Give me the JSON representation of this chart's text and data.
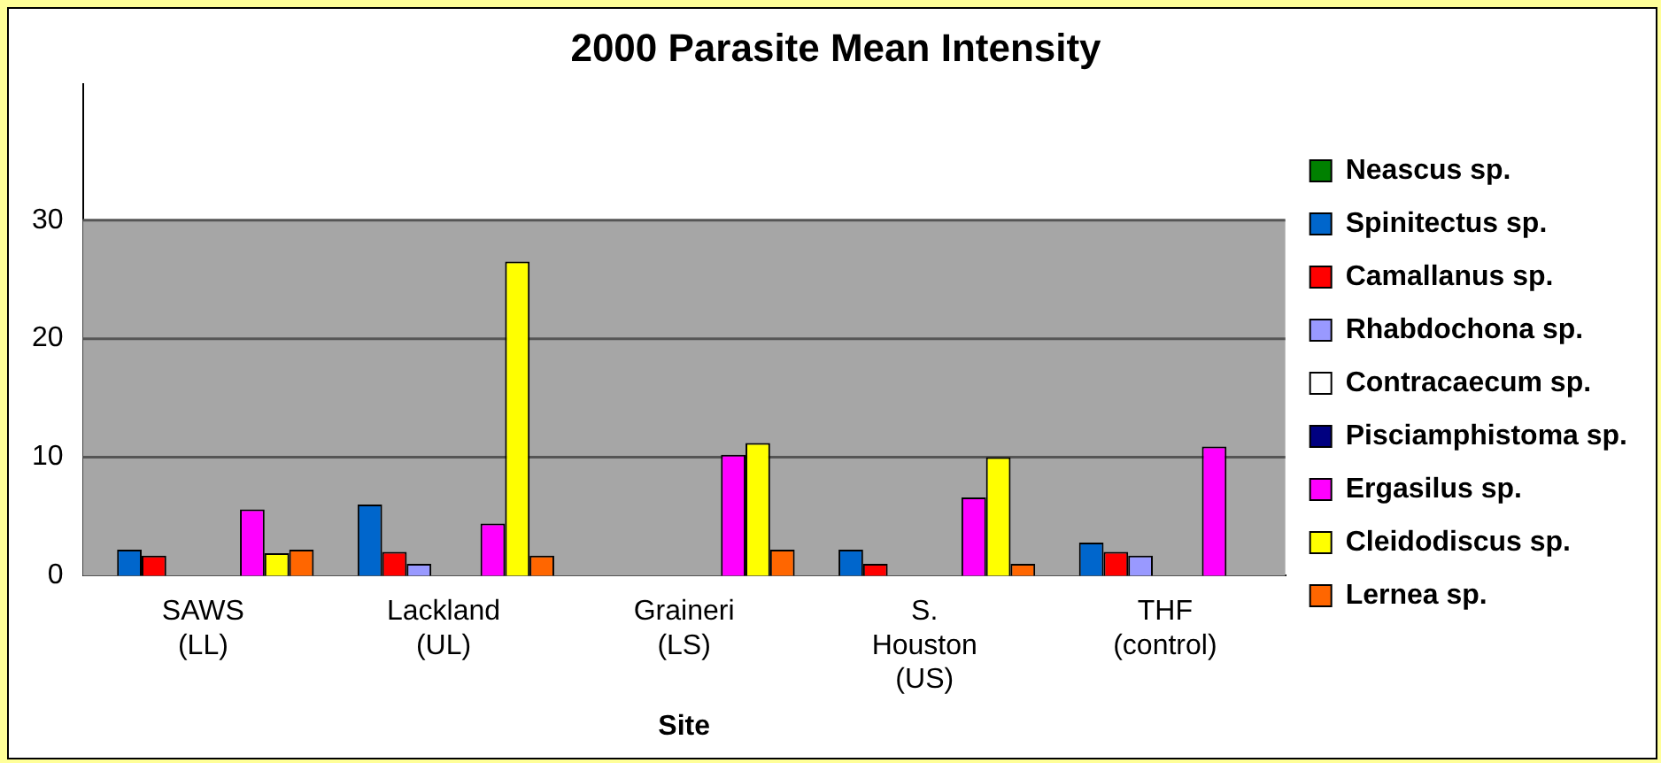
{
  "chart_data": {
    "type": "bar",
    "title": "2000 Parasite Mean Intensity",
    "xlabel": "Site",
    "categories": [
      "SAWS (LL)",
      "Lackland (UL)",
      "Graineri (LS)",
      "S. Houston (US)",
      "THF (control)"
    ],
    "series": [
      {
        "name": "Neascus sp.",
        "color": "#008000",
        "values": [
          null,
          null,
          null,
          null,
          null
        ]
      },
      {
        "name": "Spinitectus sp.",
        "color": "#0066cc",
        "values": [
          2.2,
          6.0,
          null,
          2.2,
          2.8
        ]
      },
      {
        "name": "Camallanus sp.",
        "color": "#ff0000",
        "values": [
          1.7,
          2.0,
          null,
          1.0,
          2.0
        ]
      },
      {
        "name": "Rhabdochona sp.",
        "color": "#9999ff",
        "values": [
          null,
          1.0,
          null,
          null,
          1.7
        ]
      },
      {
        "name": "Contracaecum sp.",
        "color": "#ffffff",
        "values": [
          null,
          null,
          null,
          null,
          null
        ]
      },
      {
        "name": "Pisciamphistoma sp.",
        "color": "#000080",
        "values": [
          null,
          null,
          null,
          null,
          null
        ]
      },
      {
        "name": "Ergasilus sp.",
        "color": "#ff00ff",
        "values": [
          5.6,
          4.4,
          10.2,
          6.6,
          10.9
        ]
      },
      {
        "name": "Cleidodiscus sp.",
        "color": "#ffff00",
        "values": [
          1.9,
          26.5,
          11.2,
          10.0,
          null
        ]
      },
      {
        "name": "Lernea sp.",
        "color": "#ff6600",
        "values": [
          2.2,
          1.7,
          2.2,
          1.0,
          null
        ]
      }
    ],
    "ylim": [
      0,
      41.5
    ],
    "yticks": [
      0,
      10,
      20,
      30
    ],
    "grid": "y",
    "legend": "right",
    "bands": [
      {
        "axis": "y",
        "from": 0,
        "to": 30,
        "color": "#a6a6a6"
      }
    ]
  }
}
